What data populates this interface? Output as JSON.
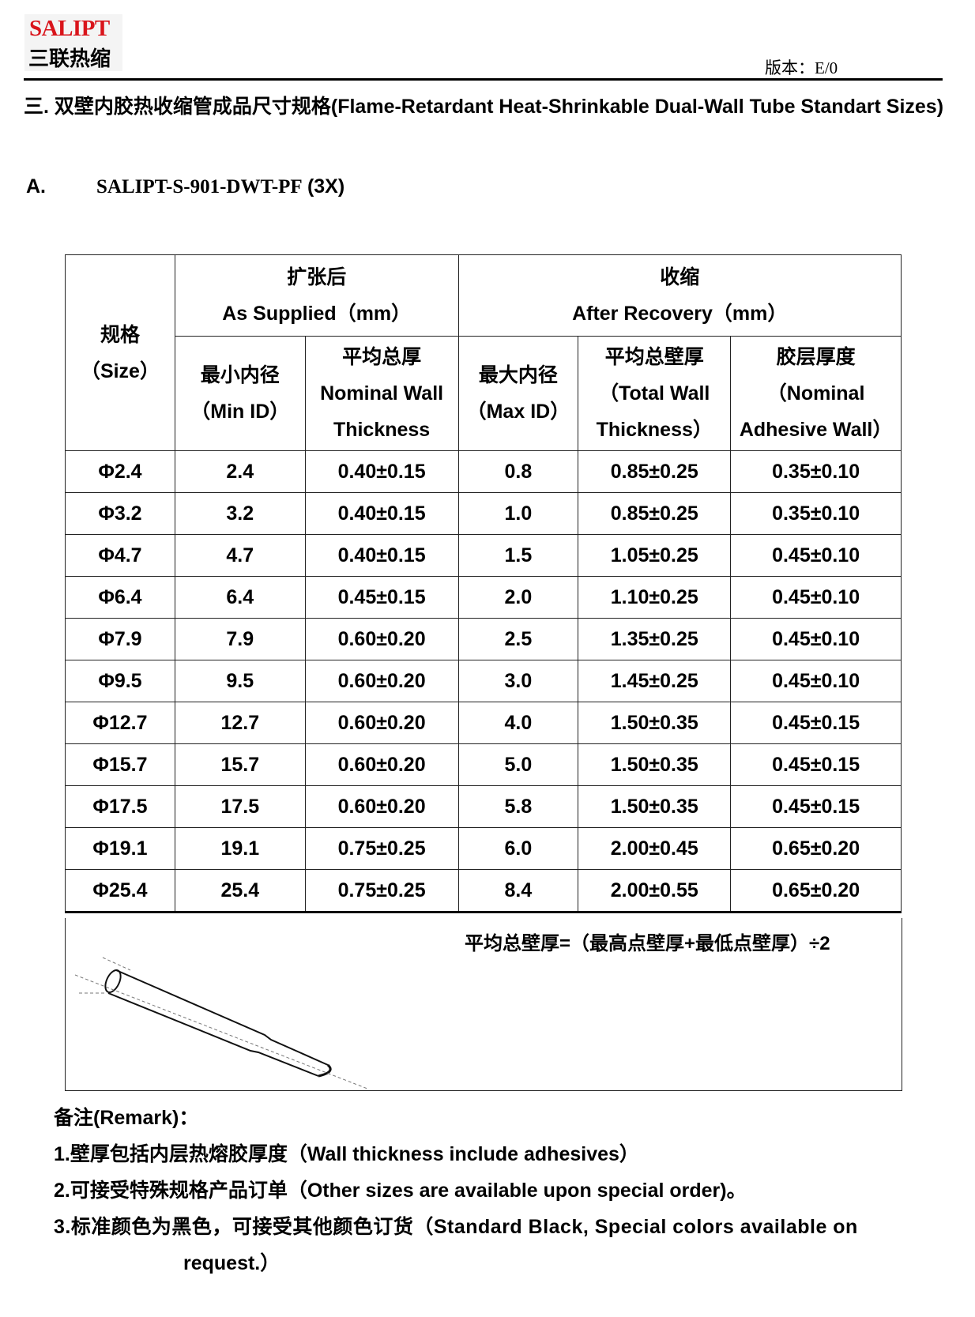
{
  "header": {
    "logo_en": "SALIPT",
    "logo_cn": "三联热缩",
    "version": "版本：E/0",
    "brand_color": "#d9141b"
  },
  "section_title": "三. 双壁内胶热收缩管成品尺寸规格(Flame-Retardant Heat-Shrinkable Dual-Wall Tube Standart Sizes)",
  "subsection": {
    "label": "A.",
    "model": "SALIPT-S-901-DWT-PF",
    "ratio": "(3X)"
  },
  "table": {
    "size_header": {
      "cn": "规格",
      "en": "（Size）"
    },
    "as_supplied": {
      "cn": "扩张后",
      "en": "As Supplied（mm）"
    },
    "after_recovery": {
      "cn": "收缩",
      "en": "After Recovery（mm）"
    },
    "columns": [
      {
        "cn": "最小内径",
        "en": "（Min ID）"
      },
      {
        "cn": "平均总厚",
        "en": "Nominal Wall Thickness"
      },
      {
        "cn": "最大内径",
        "en": "（Max ID）"
      },
      {
        "cn": "平均总壁厚",
        "en": "（Total Wall Thickness）"
      },
      {
        "cn": "胶层厚度",
        "en": "（Nominal Adhesive Wall）"
      }
    ],
    "rows": [
      [
        "Φ2.4",
        "2.4",
        "0.40±0.15",
        "0.8",
        "0.85±0.25",
        "0.35±0.10"
      ],
      [
        "Φ3.2",
        "3.2",
        "0.40±0.15",
        "1.0",
        "0.85±0.25",
        "0.35±0.10"
      ],
      [
        "Φ4.7",
        "4.7",
        "0.40±0.15",
        "1.5",
        "1.05±0.25",
        "0.45±0.10"
      ],
      [
        "Φ6.4",
        "6.4",
        "0.45±0.15",
        "2.0",
        "1.10±0.25",
        "0.45±0.10"
      ],
      [
        "Φ7.9",
        "7.9",
        "0.60±0.20",
        "2.5",
        "1.35±0.25",
        "0.45±0.10"
      ],
      [
        "Φ9.5",
        "9.5",
        "0.60±0.20",
        "3.0",
        "1.45±0.25",
        "0.45±0.10"
      ],
      [
        "Φ12.7",
        "12.7",
        "0.60±0.20",
        "4.0",
        "1.50±0.35",
        "0.45±0.15"
      ],
      [
        "Φ15.7",
        "15.7",
        "0.60±0.20",
        "5.0",
        "1.50±0.35",
        "0.45±0.15"
      ],
      [
        "Φ17.5",
        "17.5",
        "0.60±0.20",
        "5.8",
        "1.50±0.35",
        "0.45±0.15"
      ],
      [
        "Φ19.1",
        "19.1",
        "0.75±0.25",
        "6.0",
        "2.00±0.45",
        "0.65±0.20"
      ],
      [
        "Φ25.4",
        "25.4",
        "0.75±0.25",
        "8.4",
        "2.00±0.55",
        "0.65±0.20"
      ]
    ],
    "formula": "平均总壁厚=（最高点壁厚+最低点壁厚）÷2"
  },
  "notes": {
    "title": "备注(Remark)：",
    "items": [
      "1.壁厚包括内层热熔胶厚度（Wall thickness include adhesives）",
      "2.可接受特殊规格产品订单（Other sizes are available upon special order)。",
      "3.标准颜色为黑色，可接受其他颜色订货（Standard Black, Special colors available on"
    ],
    "item3_cont": "request.）"
  }
}
